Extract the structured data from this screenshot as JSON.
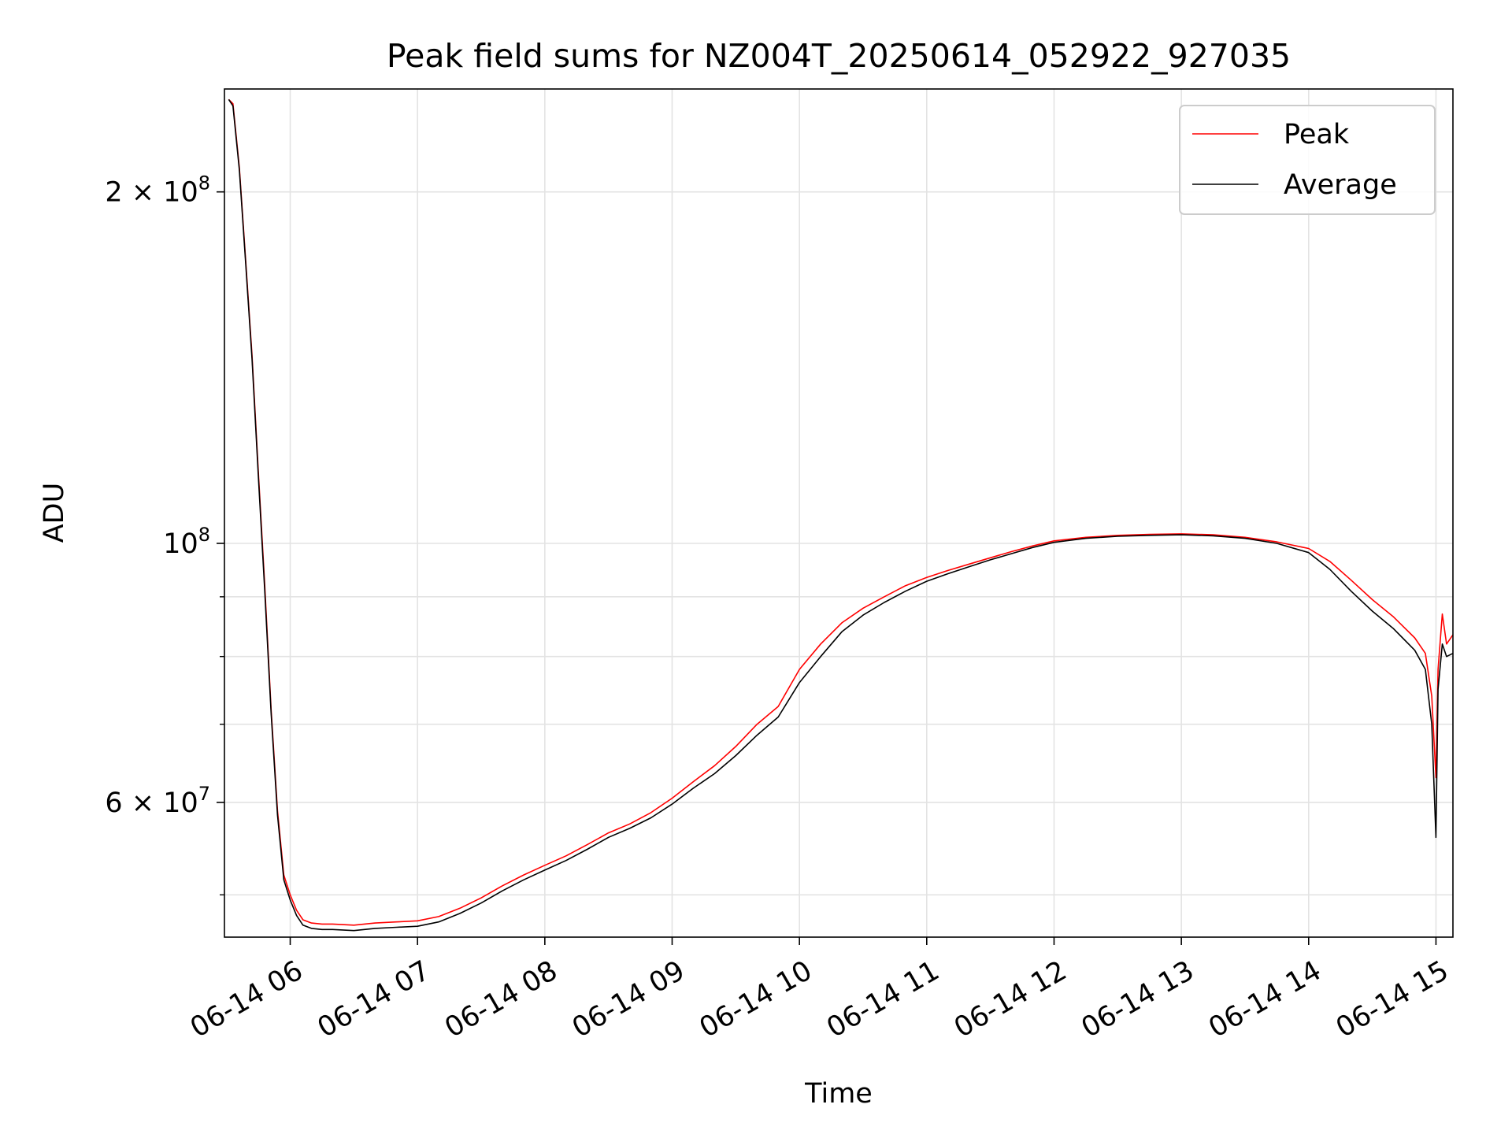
{
  "chart_data": {
    "type": "line",
    "title": "Peak field sums for NZ004T_20250614_052922_927035",
    "xlabel": "Time",
    "ylabel": "ADU",
    "yscale": "log",
    "ylim": [
      46000000,
      245000000
    ],
    "xlim": [
      "06-14 05:29",
      "06-14 15:08"
    ],
    "grid": true,
    "legend_position": "top-right",
    "x_ticks": [
      "06-14 06",
      "06-14 07",
      "06-14 08",
      "06-14 09",
      "06-14 10",
      "06-14 11",
      "06-14 12",
      "06-14 13",
      "06-14 14",
      "06-14 15"
    ],
    "y_ticks_major": [
      {
        "value": 60000000,
        "mantissa": "6",
        "exponent": "7"
      },
      {
        "value": 100000000,
        "mantissa": "",
        "exponent": "8"
      },
      {
        "value": 200000000,
        "mantissa": "2",
        "exponent": "8"
      }
    ],
    "y_ticks_minor": [
      50000000,
      70000000,
      80000000,
      90000000
    ],
    "series": [
      {
        "name": "Peak",
        "color": "#ff0000",
        "x": [
          "06-14 05:31",
          "06-14 05:33",
          "06-14 05:36",
          "06-14 05:39",
          "06-14 05:42",
          "06-14 05:45",
          "06-14 05:48",
          "06-14 05:51",
          "06-14 05:54",
          "06-14 05:57",
          "06-14 06:00",
          "06-14 06:03",
          "06-14 06:06",
          "06-14 06:10",
          "06-14 06:15",
          "06-14 06:20",
          "06-14 06:30",
          "06-14 06:40",
          "06-14 06:50",
          "06-14 07:00",
          "06-14 07:10",
          "06-14 07:20",
          "06-14 07:30",
          "06-14 07:40",
          "06-14 07:50",
          "06-14 08:00",
          "06-14 08:10",
          "06-14 08:20",
          "06-14 08:30",
          "06-14 08:40",
          "06-14 08:50",
          "06-14 09:00",
          "06-14 09:10",
          "06-14 09:20",
          "06-14 09:30",
          "06-14 09:40",
          "06-14 09:50",
          "06-14 10:00",
          "06-14 10:10",
          "06-14 10:20",
          "06-14 10:30",
          "06-14 10:40",
          "06-14 10:50",
          "06-14 11:00",
          "06-14 11:10",
          "06-14 11:20",
          "06-14 11:30",
          "06-14 11:40",
          "06-14 11:50",
          "06-14 12:00",
          "06-14 12:15",
          "06-14 12:30",
          "06-14 12:45",
          "06-14 13:00",
          "06-14 13:15",
          "06-14 13:30",
          "06-14 13:45",
          "06-14 14:00",
          "06-14 14:10",
          "06-14 14:20",
          "06-14 14:30",
          "06-14 14:40",
          "06-14 14:50",
          "06-14 14:55",
          "06-14 14:58",
          "06-14 15:00",
          "06-14 15:01",
          "06-14 15:03",
          "06-14 15:05",
          "06-14 15:08"
        ],
        "values": [
          240000000,
          238000000,
          210000000,
          175000000,
          145000000,
          115000000,
          92000000,
          72000000,
          59000000,
          52000000,
          50000000,
          48500000,
          47600000,
          47300000,
          47200000,
          47200000,
          47100000,
          47300000,
          47400000,
          47500000,
          47900000,
          48700000,
          49700000,
          50900000,
          52000000,
          53000000,
          54000000,
          55200000,
          56500000,
          57500000,
          58800000,
          60500000,
          62500000,
          64500000,
          67000000,
          70000000,
          72500000,
          78000000,
          82000000,
          85500000,
          88000000,
          90000000,
          92000000,
          93500000,
          94800000,
          96000000,
          97200000,
          98400000,
          99500000,
          100500000,
          101200000,
          101600000,
          101800000,
          101900000,
          101700000,
          101200000,
          100300000,
          99000000,
          96500000,
          93000000,
          89500000,
          86500000,
          83000000,
          80500000,
          74000000,
          63000000,
          78000000,
          87000000,
          82000000,
          83500000
        ]
      },
      {
        "name": "Average",
        "color": "#000000",
        "x": [
          "06-14 05:31",
          "06-14 05:33",
          "06-14 05:36",
          "06-14 05:39",
          "06-14 05:42",
          "06-14 05:45",
          "06-14 05:48",
          "06-14 05:51",
          "06-14 05:54",
          "06-14 05:57",
          "06-14 06:00",
          "06-14 06:03",
          "06-14 06:06",
          "06-14 06:10",
          "06-14 06:15",
          "06-14 06:20",
          "06-14 06:30",
          "06-14 06:40",
          "06-14 06:50",
          "06-14 07:00",
          "06-14 07:10",
          "06-14 07:20",
          "06-14 07:30",
          "06-14 07:40",
          "06-14 07:50",
          "06-14 08:00",
          "06-14 08:10",
          "06-14 08:20",
          "06-14 08:30",
          "06-14 08:40",
          "06-14 08:50",
          "06-14 09:00",
          "06-14 09:10",
          "06-14 09:20",
          "06-14 09:30",
          "06-14 09:40",
          "06-14 09:50",
          "06-14 10:00",
          "06-14 10:10",
          "06-14 10:20",
          "06-14 10:30",
          "06-14 10:40",
          "06-14 10:50",
          "06-14 11:00",
          "06-14 11:10",
          "06-14 11:20",
          "06-14 11:30",
          "06-14 11:40",
          "06-14 11:50",
          "06-14 12:00",
          "06-14 12:15",
          "06-14 12:30",
          "06-14 12:45",
          "06-14 13:00",
          "06-14 13:15",
          "06-14 13:30",
          "06-14 13:45",
          "06-14 14:00",
          "06-14 14:10",
          "06-14 14:20",
          "06-14 14:30",
          "06-14 14:40",
          "06-14 14:50",
          "06-14 14:55",
          "06-14 14:58",
          "06-14 15:00",
          "06-14 15:01",
          "06-14 15:03",
          "06-14 15:05",
          "06-14 15:08"
        ],
        "values": [
          240000000,
          237000000,
          209000000,
          174000000,
          144000000,
          114000000,
          91000000,
          71500000,
          58500000,
          51500000,
          49500000,
          48000000,
          47100000,
          46800000,
          46700000,
          46700000,
          46600000,
          46800000,
          46900000,
          47000000,
          47400000,
          48200000,
          49200000,
          50400000,
          51500000,
          52500000,
          53500000,
          54700000,
          56000000,
          57000000,
          58200000,
          59800000,
          61700000,
          63500000,
          65800000,
          68500000,
          71000000,
          76000000,
          80000000,
          84000000,
          86800000,
          89000000,
          91000000,
          92800000,
          94200000,
          95500000,
          96800000,
          98000000,
          99200000,
          100200000,
          101000000,
          101400000,
          101600000,
          101700000,
          101500000,
          101000000,
          100000000,
          98200000,
          95000000,
          91000000,
          87500000,
          84500000,
          81000000,
          78000000,
          70000000,
          56000000,
          75000000,
          82000000,
          80000000,
          80500000
        ]
      }
    ]
  }
}
